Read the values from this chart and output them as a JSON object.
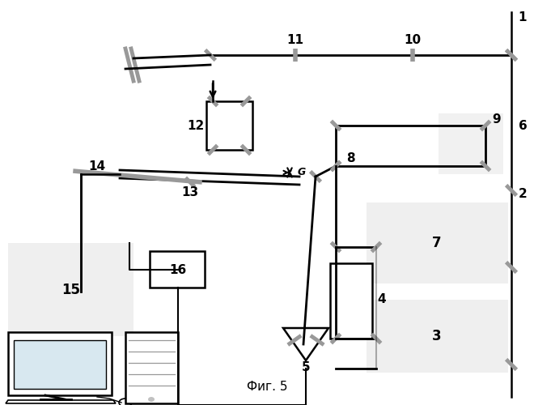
{
  "fig_width": 6.6,
  "fig_height": 5.0,
  "dpi": 100,
  "bg_color": "#ffffff",
  "lc": "#000000",
  "gc": "#999999",
  "caption": "Фиг. 5"
}
